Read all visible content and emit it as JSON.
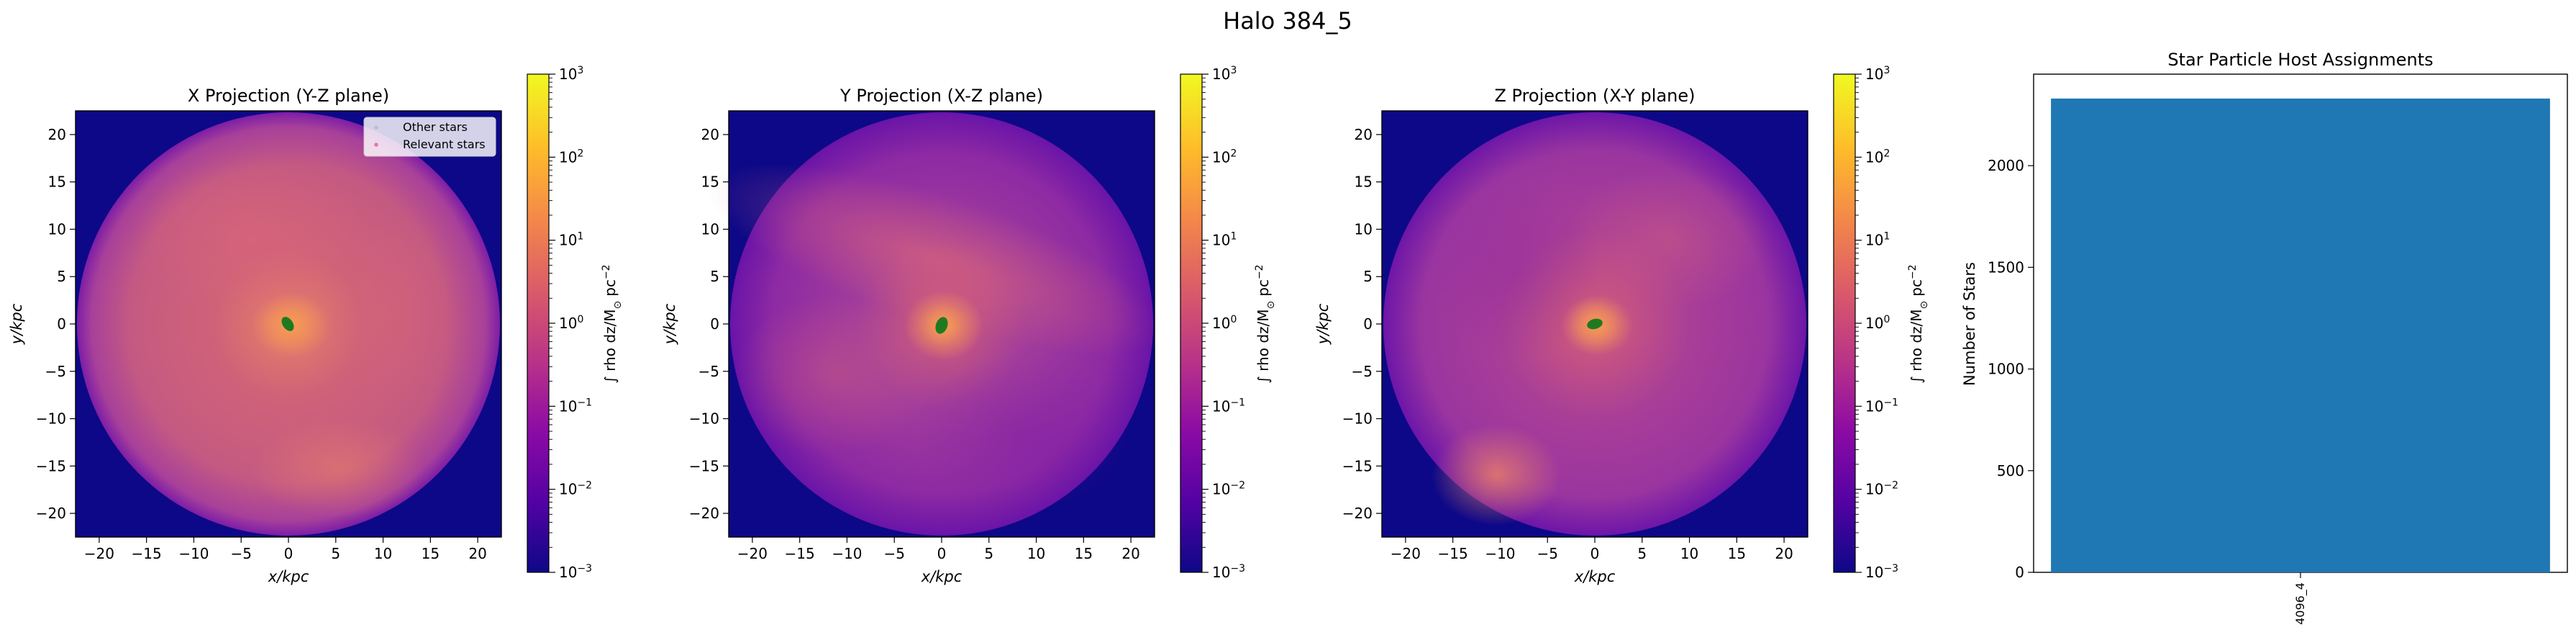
{
  "figure": {
    "title": "Halo 384_5"
  },
  "colorbar": {
    "label_text": "∫ rho dz/M",
    "label_sub": "⊙",
    "label_unit": "pc",
    "label_exp": "−2",
    "tick_base": "10",
    "tick_exponents": [
      "3",
      "2",
      "1",
      "0",
      "−1",
      "−2",
      "−3"
    ],
    "tick_values": [
      1000,
      100,
      10,
      1,
      0.1,
      0.01,
      0.001
    ],
    "vmin": 0.001,
    "vmax": 1000,
    "scale": "log",
    "colormap": "plasma"
  },
  "legend": {
    "entries": [
      {
        "label": "Other stars",
        "color": "#bfbfbf"
      },
      {
        "label": "Relevant stars",
        "color": "#e07aa0"
      }
    ]
  },
  "panels": [
    {
      "title": "X Projection (Y-Z plane)",
      "xlabel": "x/kpc",
      "ylabel": "y/kpc",
      "variant": 0
    },
    {
      "title": "Y Projection (X-Z plane)",
      "xlabel": "x/kpc",
      "ylabel": "y/kpc",
      "variant": 1
    },
    {
      "title": "Z Projection (X-Y plane)",
      "xlabel": "x/kpc",
      "ylabel": "y/kpc",
      "variant": 2
    }
  ],
  "axis": {
    "xlim": [
      -22.5,
      22.5
    ],
    "ylim": [
      -22.5,
      22.5
    ],
    "ticks": [
      -20,
      -15,
      -10,
      -5,
      0,
      5,
      10,
      15,
      20
    ],
    "tick_labels": [
      "−20",
      "−15",
      "−10",
      "−5",
      "0",
      "5",
      "10",
      "15",
      "20"
    ]
  },
  "chart_data": [
    {
      "type": "heatmap",
      "title": "X Projection (Y-Z plane)",
      "xlabel": "x/kpc",
      "ylabel": "y/kpc",
      "xlim": [
        -22.5,
        22.5
      ],
      "ylim": [
        -22.5,
        22.5
      ],
      "color_scale": "log",
      "crange": [
        0.001,
        1000
      ],
      "colorbar_label": "∫ rho dz/M⊙ pc−2",
      "legend": [
        "Other stars",
        "Relevant stars"
      ],
      "legend_position": "upper-right"
    },
    {
      "type": "heatmap",
      "title": "Y Projection (X-Z plane)",
      "xlabel": "x/kpc",
      "ylabel": "y/kpc",
      "xlim": [
        -22.5,
        22.5
      ],
      "ylim": [
        -22.5,
        22.5
      ],
      "color_scale": "log",
      "crange": [
        0.001,
        1000
      ],
      "colorbar_label": "∫ rho dz/M⊙ pc−2"
    },
    {
      "type": "heatmap",
      "title": "Z Projection (X-Y plane)",
      "xlabel": "x/kpc",
      "ylabel": "y/kpc",
      "xlim": [
        -22.5,
        22.5
      ],
      "ylim": [
        -22.5,
        22.5
      ],
      "color_scale": "log",
      "crange": [
        0.001,
        1000
      ],
      "colorbar_label": "∫ rho dz/M⊙ pc−2"
    },
    {
      "type": "bar",
      "title": "Star Particle Host Assignments",
      "ylabel": "Number of Stars",
      "categories": [
        "4096_4"
      ],
      "values": [
        2330
      ],
      "ylim": [
        0,
        2450
      ],
      "yticks": [
        0,
        500,
        1000,
        1500,
        2000
      ],
      "color": "#1f77b4"
    }
  ]
}
